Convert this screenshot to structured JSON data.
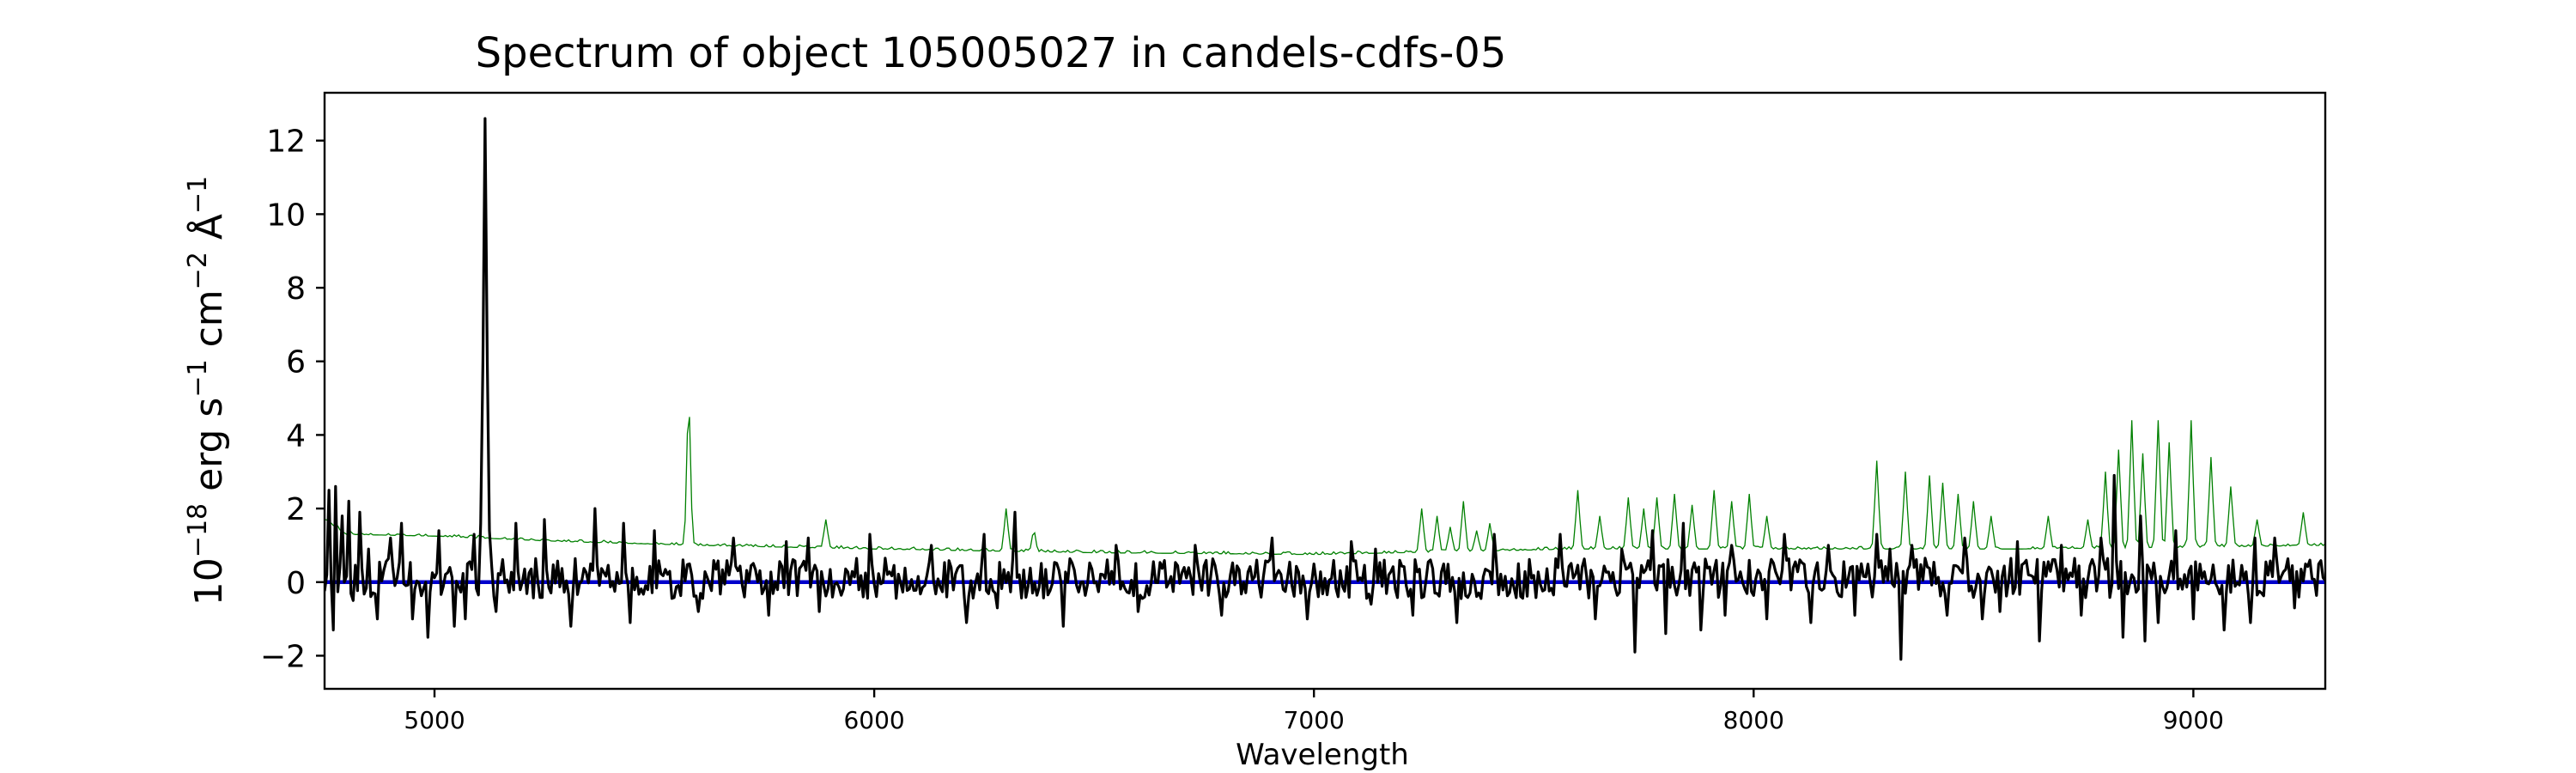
{
  "chart_data": {
    "type": "line",
    "title": "Spectrum of object 105005027 in candels-cdfs-05",
    "xlabel": "Wavelength",
    "ylabel": {
      "prefix": "10",
      "prefix_exp": "−18",
      "erg": " erg s",
      "s_exp": "−1",
      "cm": " cm",
      "cm_exp": "−2",
      "ang": " Å",
      "ang_exp": "−1"
    },
    "xlim": [
      4750,
      9300
    ],
    "ylim": [
      -2.9,
      13.3
    ],
    "x_ticks": [
      5000,
      6000,
      7000,
      8000,
      9000
    ],
    "x_tick_labels": [
      "5000",
      "6000",
      "7000",
      "8000",
      "9000"
    ],
    "y_ticks": [
      -2,
      0,
      2,
      4,
      6,
      8,
      10,
      12
    ],
    "y_tick_labels": [
      "−2",
      "0",
      "2",
      "4",
      "6",
      "8",
      "10",
      "12"
    ],
    "grid": false,
    "legend": "none",
    "colors": {
      "flux": "#000000",
      "error": "#008000",
      "zero_line": "#0000cc"
    },
    "x_range": {
      "start": 4750,
      "end": 9300,
      "step": 5
    },
    "series": [
      {
        "role": "flux",
        "generator": {
          "seed": 105005027,
          "noise": 0.55,
          "base": 0.1
        },
        "points": [
          [
            4760,
            2.5
          ],
          [
            4768,
            -1.3
          ],
          [
            4775,
            2.6
          ],
          [
            4790,
            1.8
          ],
          [
            4805,
            2.2
          ],
          [
            4815,
            -0.5
          ],
          [
            4830,
            1.9
          ],
          [
            4850,
            0.9
          ],
          [
            4872,
            -1.0
          ],
          [
            4900,
            1.2
          ],
          [
            4925,
            1.6
          ],
          [
            4950,
            -1.0
          ],
          [
            4985,
            -1.5
          ],
          [
            5010,
            1.4
          ],
          [
            5045,
            -1.2
          ],
          [
            5070,
            -1.0
          ],
          [
            5090,
            1.3
          ],
          [
            5105,
            1.6
          ],
          [
            5110,
            6.0
          ],
          [
            5115,
            12.6
          ],
          [
            5120,
            6.0
          ],
          [
            5126,
            1.4
          ],
          [
            5140,
            -0.8
          ],
          [
            5185,
            1.6
          ],
          [
            5250,
            1.7
          ],
          [
            5310,
            -1.2
          ],
          [
            5365,
            2.0
          ],
          [
            5430,
            1.6
          ],
          [
            5445,
            -1.1
          ],
          [
            5500,
            1.4
          ],
          [
            5600,
            -0.8
          ],
          [
            5680,
            1.2
          ],
          [
            5760,
            -0.9
          ],
          [
            5800,
            1.1
          ],
          [
            5850,
            1.2
          ],
          [
            5875,
            -0.8
          ],
          [
            5990,
            1.3
          ],
          [
            6130,
            1.0
          ],
          [
            6210,
            -1.1
          ],
          [
            6250,
            1.3
          ],
          [
            6280,
            -0.7
          ],
          [
            6320,
            1.9
          ],
          [
            6430,
            -1.2
          ],
          [
            6550,
            1.0
          ],
          [
            6600,
            -0.8
          ],
          [
            6730,
            1.0
          ],
          [
            6790,
            -0.9
          ],
          [
            6905,
            1.2
          ],
          [
            6985,
            -1.0
          ],
          [
            7085,
            1.1
          ],
          [
            7130,
            -0.6
          ],
          [
            7140,
            0.9
          ],
          [
            7225,
            -0.9
          ],
          [
            7325,
            -1.1
          ],
          [
            7410,
            1.3
          ],
          [
            7560,
            1.3
          ],
          [
            7640,
            -1.0
          ],
          [
            7700,
            0.9
          ],
          [
            7730,
            -1.9
          ],
          [
            7770,
            1.4
          ],
          [
            7800,
            -1.4
          ],
          [
            7840,
            1.6
          ],
          [
            7880,
            -1.3
          ],
          [
            7935,
            -0.9
          ],
          [
            7950,
            1.0
          ],
          [
            8030,
            -1.0
          ],
          [
            8070,
            1.3
          ],
          [
            8130,
            -1.1
          ],
          [
            8170,
            1.0
          ],
          [
            8230,
            -0.9
          ],
          [
            8280,
            1.3
          ],
          [
            8310,
            0.9
          ],
          [
            8335,
            -2.1
          ],
          [
            8360,
            1.0
          ],
          [
            8440,
            -0.9
          ],
          [
            8480,
            1.2
          ],
          [
            8520,
            -1.0
          ],
          [
            8560,
            -0.8
          ],
          [
            8600,
            1.1
          ],
          [
            8650,
            -1.6
          ],
          [
            8700,
            1.0
          ],
          [
            8745,
            -0.9
          ],
          [
            8790,
            1.2
          ],
          [
            8820,
            2.9
          ],
          [
            8840,
            -1.5
          ],
          [
            8880,
            1.8
          ],
          [
            8890,
            -1.6
          ],
          [
            8920,
            -1.1
          ],
          [
            8960,
            1.4
          ],
          [
            9000,
            -1.0
          ],
          [
            9070,
            -1.3
          ],
          [
            9130,
            -1.1
          ],
          [
            9140,
            1.2
          ],
          [
            9185,
            1.2
          ],
          [
            9230,
            -0.7
          ],
          [
            9265,
            0.6
          ]
        ]
      },
      {
        "role": "error",
        "generator": {
          "seed": 27,
          "noise": 0.07
        },
        "envelope": [
          [
            4750,
            1.7
          ],
          [
            4800,
            1.3
          ],
          [
            5000,
            1.25
          ],
          [
            5300,
            1.1
          ],
          [
            5600,
            1.0
          ],
          [
            6000,
            0.9
          ],
          [
            6500,
            0.8
          ],
          [
            7000,
            0.75
          ],
          [
            7200,
            0.8
          ],
          [
            7600,
            0.9
          ],
          [
            8000,
            0.9
          ],
          [
            8300,
            0.9
          ],
          [
            8600,
            0.9
          ],
          [
            9000,
            0.95
          ],
          [
            9300,
            1.0
          ]
        ],
        "peaks": [
          [
            5578,
            4.9
          ],
          [
            5890,
            1.7
          ],
          [
            6300,
            2.0
          ],
          [
            6363,
            1.4
          ],
          [
            7245,
            2.0
          ],
          [
            7280,
            1.8
          ],
          [
            7310,
            1.5
          ],
          [
            7340,
            2.2
          ],
          [
            7370,
            1.4
          ],
          [
            7400,
            1.6
          ],
          [
            7600,
            2.5
          ],
          [
            7650,
            1.8
          ],
          [
            7715,
            2.3
          ],
          [
            7750,
            2.0
          ],
          [
            7780,
            2.3
          ],
          [
            7820,
            2.4
          ],
          [
            7860,
            2.1
          ],
          [
            7910,
            2.5
          ],
          [
            7950,
            2.2
          ],
          [
            7990,
            2.4
          ],
          [
            8030,
            1.8
          ],
          [
            8280,
            3.3
          ],
          [
            8345,
            3.0
          ],
          [
            8400,
            2.9
          ],
          [
            8430,
            2.7
          ],
          [
            8465,
            2.4
          ],
          [
            8500,
            2.2
          ],
          [
            8540,
            1.8
          ],
          [
            8670,
            1.8
          ],
          [
            8760,
            1.7
          ],
          [
            8800,
            3.0
          ],
          [
            8830,
            3.6
          ],
          [
            8860,
            4.4
          ],
          [
            8885,
            3.5
          ],
          [
            8920,
            4.4
          ],
          [
            8945,
            3.8
          ],
          [
            8995,
            4.4
          ],
          [
            9040,
            3.4
          ],
          [
            9085,
            2.6
          ],
          [
            9145,
            1.7
          ],
          [
            9250,
            1.9
          ]
        ]
      },
      {
        "role": "zero_line",
        "x": [
          4750,
          9300
        ],
        "values": [
          0,
          0
        ]
      }
    ]
  }
}
